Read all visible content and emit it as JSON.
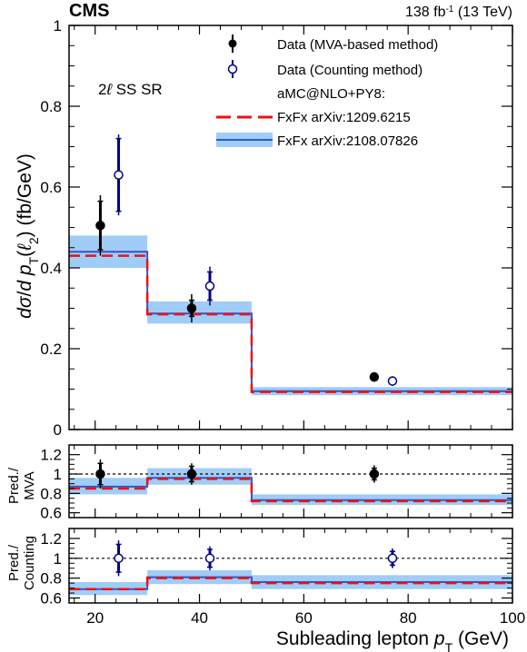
{
  "header": {
    "experiment": "CMS",
    "lumi_energy": "138 fb-1 (13 TeV)"
  },
  "chart_data": [
    {
      "type": "line",
      "panel": "main",
      "title": "",
      "region_label": "2ℓ SS SR",
      "xlabel": "",
      "ylabel": "dσ/d pT(ℓ2)  (fb/GeV)",
      "xlim": [
        15,
        100
      ],
      "ylim": [
        0,
        1
      ],
      "yticks": [
        "0",
        "0.2",
        "0.4",
        "0.6",
        "0.8",
        "1"
      ],
      "bin_edges": [
        15,
        30,
        50,
        100
      ],
      "legend_header": "aMC@NLO+PY8:",
      "legend_placement": "top-right",
      "series": [
        {
          "name": "Data (MVA-based method)",
          "style": "points-filled",
          "color": "#000000",
          "x": [
            21,
            38.5,
            73.5
          ],
          "values": [
            0.505,
            0.3,
            0.13
          ],
          "err_inner": [
            0.06,
            0.02,
            0.008
          ],
          "err_outer": [
            0.075,
            0.035,
            0.012
          ]
        },
        {
          "name": "Data (Counting method)",
          "style": "points-open",
          "color": "#000080",
          "x": [
            24.5,
            42,
            77
          ],
          "values": [
            0.63,
            0.355,
            0.12
          ],
          "err_inner": [
            0.09,
            0.035,
            0.008
          ],
          "err_outer": [
            0.1,
            0.048,
            0.012
          ]
        },
        {
          "name": "FxFx arXiv:1209.6215",
          "style": "dashed-step",
          "color": "#ee1111",
          "values": [
            0.43,
            0.285,
            0.093
          ]
        },
        {
          "name": "FxFx arXiv:2108.07826",
          "style": "band-step",
          "color": "#3355cc",
          "band_color": "#9fcdf7",
          "values": [
            0.44,
            0.287,
            0.095
          ],
          "band_lo": [
            0.4,
            0.262,
            0.085
          ],
          "band_hi": [
            0.48,
            0.317,
            0.105
          ]
        }
      ]
    },
    {
      "type": "line",
      "panel": "ratio-mva",
      "ylabel": "Pred./MVA",
      "xlim": [
        15,
        100
      ],
      "ylim": [
        0.55,
        1.3
      ],
      "yticks": [
        "0.6",
        "0.8",
        "1",
        "1.2"
      ],
      "ref_line": 1,
      "bin_edges": [
        15,
        30,
        50,
        100
      ],
      "series": [
        {
          "name": "Data (MVA-based method)",
          "style": "points-filled",
          "color": "#000000",
          "x": [
            21,
            38.5,
            73.5
          ],
          "values": [
            1.0,
            1.0,
            1.0
          ],
          "err_inner": [
            0.11,
            0.08,
            0.06
          ],
          "err_outer": [
            0.15,
            0.11,
            0.09
          ]
        },
        {
          "name": "FxFx arXiv:1209.6215",
          "style": "dashed-step",
          "color": "#ee1111",
          "values": [
            0.85,
            0.95,
            0.72
          ]
        },
        {
          "name": "FxFx arXiv:2108.07826",
          "style": "band-step",
          "color": "#3355cc",
          "band_color": "#9fcdf7",
          "values": [
            0.87,
            0.96,
            0.73
          ],
          "band_lo": [
            0.79,
            0.89,
            0.68
          ],
          "band_hi": [
            0.96,
            1.06,
            0.79
          ]
        }
      ]
    },
    {
      "type": "line",
      "panel": "ratio-counting",
      "ylabel": "Pred./Counting",
      "xlabel": "Subleading lepton pT (GeV)",
      "xlim": [
        15,
        100
      ],
      "ylim": [
        0.55,
        1.3
      ],
      "yticks": [
        "0.6",
        "0.8",
        "1",
        "1.2"
      ],
      "xticks": [
        "20",
        "40",
        "60",
        "80",
        "100"
      ],
      "ref_line": 1,
      "bin_edges": [
        15,
        30,
        50,
        100
      ],
      "series": [
        {
          "name": "Data (Counting method)",
          "style": "points-open",
          "color": "#000080",
          "x": [
            24.5,
            42,
            77
          ],
          "values": [
            1.0,
            1.0,
            1.0
          ],
          "err_inner": [
            0.14,
            0.09,
            0.07
          ],
          "err_outer": [
            0.18,
            0.12,
            0.1
          ]
        },
        {
          "name": "FxFx arXiv:1209.6215",
          "style": "dashed-step",
          "color": "#ee1111",
          "values": [
            0.69,
            0.8,
            0.75
          ]
        },
        {
          "name": "FxFx arXiv:2108.07826",
          "style": "band-step",
          "color": "#3355cc",
          "band_color": "#9fcdf7",
          "values": [
            0.69,
            0.81,
            0.76
          ],
          "band_lo": [
            0.63,
            0.74,
            0.69
          ],
          "band_hi": [
            0.76,
            0.88,
            0.83
          ]
        }
      ]
    }
  ]
}
